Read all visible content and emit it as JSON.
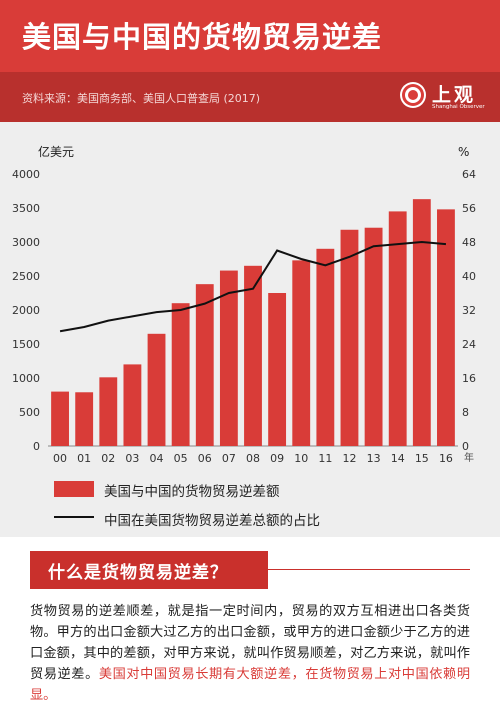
{
  "header": {
    "title": "美国与中国的货物贸易逆差",
    "source": "资料来源：美国商务部、美国人口普查局 (2017)",
    "logo_text": "上观",
    "logo_sub": "Shanghai Observer"
  },
  "colors": {
    "bar": "#d93c38",
    "line": "#111111",
    "header": "#d93c38",
    "subheader": "#b8302d",
    "chart_bg": "#eeeeee"
  },
  "chart_data": {
    "type": "bar",
    "categories": [
      "00",
      "01",
      "02",
      "03",
      "04",
      "05",
      "06",
      "07",
      "08",
      "09",
      "10",
      "11",
      "12",
      "13",
      "14",
      "15",
      "16"
    ],
    "x_unit": "年",
    "series": [
      {
        "name": "美国与中国的货物贸易逆差额",
        "type": "bar",
        "axis": "left",
        "values": [
          800,
          790,
          1010,
          1200,
          1650,
          2100,
          2380,
          2580,
          2650,
          2250,
          2730,
          2900,
          3180,
          3210,
          3450,
          3630,
          3480
        ]
      },
      {
        "name": "中国在美国货物贸易逆差总额的占比",
        "type": "line",
        "axis": "right",
        "values": [
          27,
          28,
          29.5,
          30.5,
          31.5,
          32,
          33.5,
          36,
          37,
          46,
          44,
          42.5,
          44.5,
          47,
          47.5,
          48,
          47.5
        ]
      }
    ],
    "left_axis": {
      "label": "亿美元",
      "range": [
        0,
        4000
      ],
      "ticks": [
        0,
        500,
        1000,
        1500,
        2000,
        2500,
        3000,
        3500,
        4000
      ]
    },
    "right_axis": {
      "label": "%",
      "range": [
        0,
        64
      ],
      "ticks": [
        0,
        8,
        16,
        24,
        32,
        40,
        48,
        56,
        64
      ]
    },
    "grid": false,
    "legend_position": "bottom-left"
  },
  "section": {
    "question": "什么是货物贸易逆差？",
    "body_plain": "货物贸易的逆差顺差，就是指一定时间内，贸易的双方互相进出口各类货物。甲方的出口金额大过乙方的出口金额，或甲方的进口金额少于乙方的进口金额，其中的差额，对甲方来说，就叫作贸易顺差，对乙方来说，就叫作贸易逆差。",
    "body_highlight": "美国对中国贸易长期有大额逆差，在货物贸易上对中国依赖明显。"
  }
}
